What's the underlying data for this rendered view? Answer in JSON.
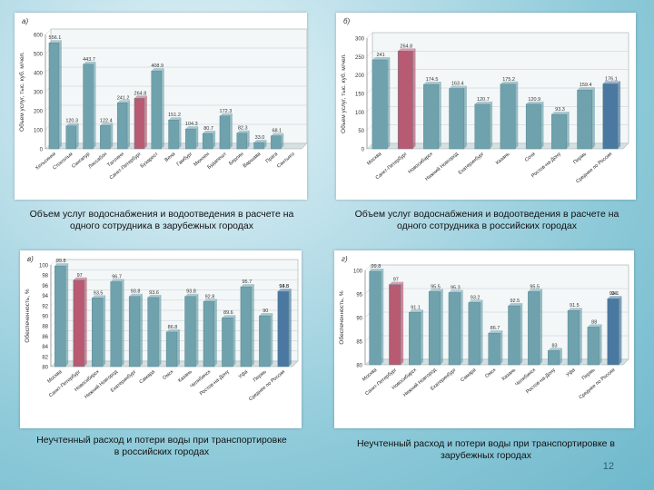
{
  "captions": [
    "Объем услуг водоснабжения и водоотведения в расчете на одного сотрудника в зарубежных городах",
    "Объем услуг водоснабжения и водоотведения в расчете на одного сотрудника в российских городах",
    "Неучтенный расход и потери воды при транспортировке в российских городах",
    "Неучтенный расход и потери воды при транспортировке в зарубежных городах"
  ],
  "page_number": "12",
  "colors": {
    "bar": "#6fa2ad",
    "bar_red": "#b85a72",
    "bar_blue": "#4a78a0"
  },
  "chart_data": [
    {
      "type": "bar",
      "tag": "а)",
      "title": "",
      "xlabel": "",
      "ylabel": "Объем услуг, тыс. куб. м/чел.",
      "ylim": [
        0,
        600
      ],
      "yticks": [
        0,
        100,
        200,
        300,
        400,
        500,
        600
      ],
      "categories": [
        "Хельсинки",
        "Стокгольм",
        "Сингапур",
        "Лиссабон",
        "Таллинн",
        "Санкт-Петербург",
        "Бухарест",
        "Вена",
        "Гамбург",
        "Мюнхен",
        "Будапешт",
        "Берлин",
        "Варшава",
        "Прага",
        "Сантьяго"
      ],
      "values": [
        556.1,
        120.3,
        443.7,
        122.4,
        241.2,
        264.8,
        408.9,
        151.2,
        104.3,
        80.7,
        172.3,
        82.3,
        33.0,
        68.1,
        0
      ],
      "value_labels": [
        "556.1",
        "120.3",
        "443.7",
        "122.4",
        "241.2",
        "264.8",
        "408.9",
        "151.2",
        "104.3",
        "80.7",
        "172.3",
        "82.3",
        "33.0",
        "68.1",
        ""
      ],
      "highlight": {
        "5": "red"
      }
    },
    {
      "type": "bar",
      "tag": "б)",
      "title": "",
      "xlabel": "",
      "ylabel": "Объем услуг, тыс. куб. м/чел.",
      "ylim": [
        0,
        300
      ],
      "yticks": [
        0,
        50,
        100,
        150,
        200,
        250,
        300
      ],
      "categories": [
        "Москва",
        "Санкт-Петербург",
        "Новосибирск",
        "Нижний Новгород",
        "Екатеринбург",
        "Казань",
        "Сочи",
        "Ростов-на-Дону",
        "Пермь",
        "Среднее по России"
      ],
      "values": [
        241,
        264.8,
        174.5,
        163.4,
        120.7,
        175.2,
        120.9,
        93.3,
        159.4,
        176.1
      ],
      "value_labels": [
        "241",
        "264.8",
        "174.5",
        "163.4",
        "120.7",
        "175.2",
        "120.9",
        "93.3",
        "159.4",
        "176.1"
      ],
      "highlight": {
        "1": "red",
        "9": "blue"
      }
    },
    {
      "type": "bar",
      "tag": "в)",
      "title": "",
      "xlabel": "",
      "ylabel": "Обеспеченность, %",
      "ylim": [
        80,
        100
      ],
      "yticks": [
        80,
        82,
        84,
        86,
        88,
        90,
        92,
        94,
        96,
        98,
        100
      ],
      "categories": [
        "Москва",
        "Санкт-Петербург",
        "Новосибирск",
        "Нижний Новгород",
        "Екатеринбург",
        "Самара",
        "Омск",
        "Казань",
        "Челябинск",
        "Ростов-на-Дону",
        "Уфа",
        "Пермь",
        "Среднее по России"
      ],
      "values": [
        99.8,
        97,
        93.5,
        96.7,
        93.8,
        93.6,
        86.8,
        93.8,
        92.8,
        89.6,
        95.7,
        90,
        94.8
      ],
      "value_labels": [
        "99.8",
        "97",
        "93.5",
        "96.7",
        "93.8",
        "93.6",
        "86.8",
        "93.8",
        "92.8",
        "89.6",
        "95.7",
        "90",
        "94.8"
      ],
      "extra_label": "93.5",
      "highlight": {
        "1": "red",
        "12": "blue"
      }
    },
    {
      "type": "bar",
      "tag": "г)",
      "title": "",
      "xlabel": "",
      "ylabel": "Обеспеченность, %",
      "ylim": [
        80,
        100
      ],
      "yticks": [
        80,
        85,
        90,
        95,
        100
      ],
      "categories": [
        "Москва",
        "Санкт-Петербург",
        "Новосибирск",
        "Нижний Новгород",
        "Екатеринбург",
        "Самара",
        "Омск",
        "Казань",
        "Челябинск",
        "Ростов-на-Дону",
        "Уфа",
        "Пермь",
        "Среднее по России"
      ],
      "values": [
        99.8,
        97,
        91.1,
        95.5,
        95.3,
        93.2,
        86.7,
        92.5,
        95.5,
        83,
        91.5,
        88,
        94
      ],
      "value_labels": [
        "99.8",
        "97",
        "91.1",
        "95.5",
        "95.3",
        "93.2",
        "86.7",
        "92.5",
        "95.5",
        "83",
        "91.5",
        "88",
        "94"
      ],
      "extra_label": "93.1",
      "highlight": {
        "1": "red",
        "12": "blue"
      }
    }
  ]
}
